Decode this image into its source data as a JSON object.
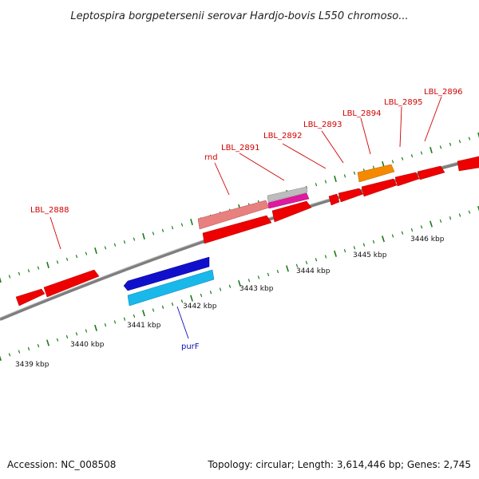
{
  "title": "Leptospira borgpetersenii serovar Hardjo-bovis L550 chromoso...",
  "footer": {
    "accession": "Accession: NC_008508",
    "summary": "Topology: circular; Length: 3,614,446 bp; Genes: 2,745"
  },
  "colors": {
    "background": "#ffffff",
    "backbone": "#8a8a8a",
    "tick": "#1a7a1a",
    "label_red": "#d00000",
    "label_blue": "#0a10b8",
    "gene_red": "#ee0000",
    "gene_pink": "#e88080",
    "gene_magenta": "#e01a9e",
    "gene_grey": "#bdbdbd",
    "gene_orange": "#f58a00",
    "gene_blue": "#1010cc",
    "gene_cyan": "#19b8ea"
  },
  "scale_labels": [
    "3439 kbp",
    "3440 kbp",
    "3441 kbp",
    "3442 kbp",
    "3443 kbp",
    "3444 kbp",
    "3445 kbp",
    "3446 kbp"
  ],
  "gene_labels": [
    {
      "text": "LBL_2888",
      "color": "red"
    },
    {
      "text": "rnd",
      "color": "red"
    },
    {
      "text": "LBL_2891",
      "color": "red"
    },
    {
      "text": "LBL_2892",
      "color": "red"
    },
    {
      "text": "LBL_2893",
      "color": "red"
    },
    {
      "text": "LBL_2894",
      "color": "red"
    },
    {
      "text": "LBL_2895",
      "color": "red"
    },
    {
      "text": "LBL_2896",
      "color": "red"
    },
    {
      "text": "purF",
      "color": "blue"
    }
  ],
  "genes": [
    {
      "id": "gene-a",
      "color": "gene_red"
    },
    {
      "id": "gene-b",
      "color": "gene_red"
    },
    {
      "id": "gene-purf-blue",
      "color": "gene_blue"
    },
    {
      "id": "gene-purf-cyan",
      "color": "gene_cyan"
    },
    {
      "id": "gene-rnd-pink",
      "color": "gene_pink"
    },
    {
      "id": "gene-rnd-red",
      "color": "gene_red"
    },
    {
      "id": "gene-2891-grey",
      "color": "gene_grey"
    },
    {
      "id": "gene-2891-magenta",
      "color": "gene_magenta"
    },
    {
      "id": "gene-2892-red",
      "color": "gene_red"
    },
    {
      "id": "gene-2893-small",
      "color": "gene_red"
    },
    {
      "id": "gene-2893-red",
      "color": "gene_red"
    },
    {
      "id": "gene-2894-orange",
      "color": "gene_orange"
    },
    {
      "id": "gene-2894-red",
      "color": "gene_red"
    },
    {
      "id": "gene-2895-red",
      "color": "gene_red"
    },
    {
      "id": "gene-2896-red",
      "color": "gene_red"
    },
    {
      "id": "gene-edge-red",
      "color": "gene_red"
    }
  ]
}
